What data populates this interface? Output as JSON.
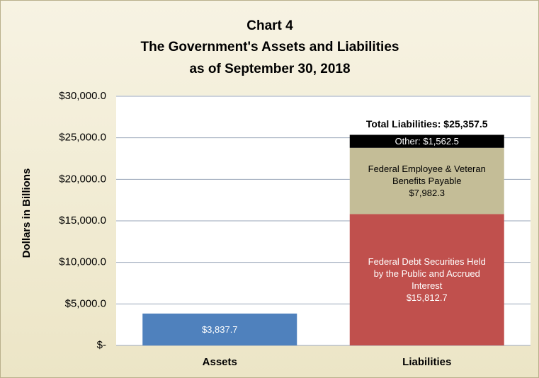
{
  "chart_data": {
    "type": "stacked_bar",
    "title": "Chart 4",
    "subtitle": [
      "The Government's Assets and Liabilities",
      "as of September 30, 2018"
    ],
    "y_label": "Dollars in Billions",
    "categories": [
      "Assets",
      "Liabilities"
    ],
    "series": [
      {
        "color": "#4f81bd",
        "values": [
          3837.7,
          null
        ],
        "value_labels": [
          "$3,837.7",
          null
        ]
      },
      {
        "name": "Federal Debt Securities Held by the Public and Accrued Interest",
        "color": "#c0504d",
        "values": [
          null,
          15812.7
        ],
        "value_labels": [
          null,
          "$15,812.7"
        ]
      },
      {
        "name": "Federal Employee & Veteran Benefits Payable",
        "color": "#c4bd97",
        "values": [
          null,
          7982.3
        ],
        "value_labels": [
          null,
          "$7,982.3"
        ]
      },
      {
        "name": "Other:",
        "color": "#000000",
        "values": [
          null,
          1562.5
        ],
        "value_labels": [
          null,
          "$1,562.5"
        ]
      }
    ],
    "annotation": "Total Liabilities:  $25,357.5",
    "ylim": [
      0,
      30000
    ],
    "yticks": [
      {
        "value": 0,
        "label": "$-"
      },
      {
        "value": 5000,
        "label": "$5,000.0"
      },
      {
        "value": 10000,
        "label": "$10,000.0"
      },
      {
        "value": 15000,
        "label": "$15,000.0"
      },
      {
        "value": 20000,
        "label": "$20,000.0"
      },
      {
        "value": 25000,
        "label": "$25,000.0"
      },
      {
        "value": 30000,
        "label": "$30,000.0"
      }
    ],
    "grid": true
  }
}
